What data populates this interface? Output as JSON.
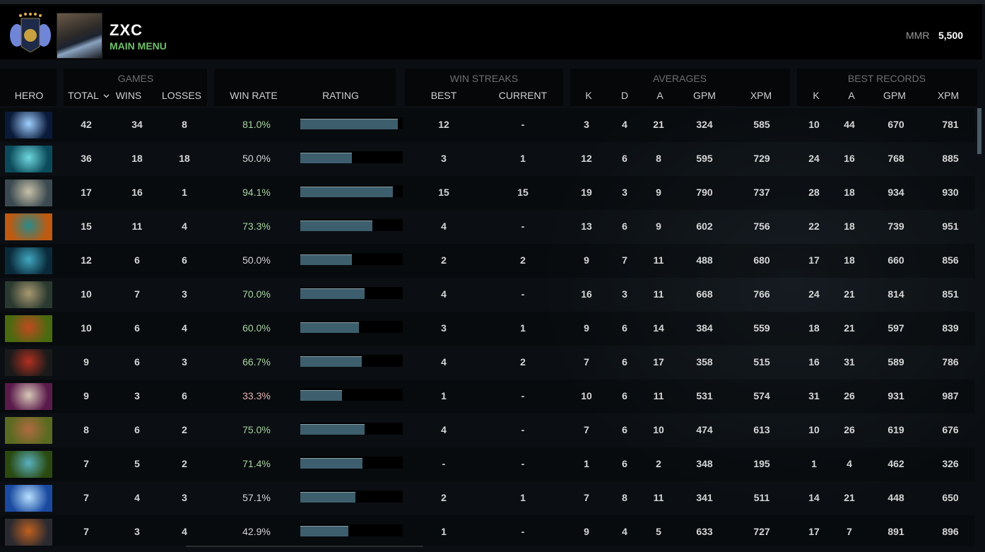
{
  "header": {
    "player_name": "ZXC",
    "status": "MAIN MENU",
    "mmr_label": "MMR",
    "mmr_value": "5,500"
  },
  "groups": {
    "games": "GAMES",
    "win_streaks": "WIN STREAKS",
    "averages": "AVERAGES",
    "best_records": "BEST RECORDS"
  },
  "columns": {
    "hero": "HERO",
    "total": "TOTAL",
    "sort_icon": "chevron-down-icon",
    "wins": "WINS",
    "losses": "LOSSES",
    "win_rate": "WIN RATE",
    "rating": "RATING",
    "best": "BEST",
    "current": "CURRENT",
    "avg_k": "K",
    "avg_d": "D",
    "avg_a": "A",
    "avg_gpm": "GPM",
    "avg_xpm": "XPM",
    "best_k": "K",
    "best_a": "A",
    "best_gpm": "GPM",
    "best_xpm": "XPM"
  },
  "colors": {
    "win_rate_high": "#a8d4a0",
    "win_rate_normal": "#d6d6d6",
    "win_rate_low": "#e2b3b3",
    "rating_fill": "#3d5e6d",
    "status": "#6fbf6a"
  },
  "rows": [
    {
      "hero": "hero-1",
      "c": [
        "#0a1a3a",
        "#9fd0ff"
      ],
      "total": "42",
      "wins": "34",
      "losses": "8",
      "win_rate": "81.0%",
      "rating": 0.95,
      "best": "12",
      "current": "-",
      "k": "3",
      "d": "4",
      "a": "21",
      "gpm": "324",
      "xpm": "585",
      "bk": "10",
      "ba": "44",
      "bgpm": "670",
      "bxpm": "781"
    },
    {
      "hero": "hero-2",
      "c": [
        "#0b4a5a",
        "#6fd8e0"
      ],
      "total": "36",
      "wins": "18",
      "losses": "18",
      "win_rate": "50.0%",
      "rating": 0.5,
      "best": "3",
      "current": "1",
      "k": "12",
      "d": "6",
      "a": "8",
      "gpm": "595",
      "xpm": "729",
      "bk": "24",
      "ba": "16",
      "bgpm": "768",
      "bxpm": "885"
    },
    {
      "hero": "hero-3",
      "c": [
        "#3a4a50",
        "#c8c0a8"
      ],
      "total": "17",
      "wins": "16",
      "losses": "1",
      "win_rate": "94.1%",
      "rating": 0.9,
      "best": "15",
      "current": "15",
      "k": "19",
      "d": "3",
      "a": "9",
      "gpm": "790",
      "xpm": "737",
      "bk": "28",
      "ba": "18",
      "bgpm": "934",
      "bxpm": "930"
    },
    {
      "hero": "hero-4",
      "c": [
        "#c05a10",
        "#2a8a8a"
      ],
      "total": "15",
      "wins": "11",
      "losses": "4",
      "win_rate": "73.3%",
      "rating": 0.7,
      "best": "4",
      "current": "-",
      "k": "13",
      "d": "6",
      "a": "9",
      "gpm": "602",
      "xpm": "756",
      "bk": "22",
      "ba": "18",
      "bgpm": "739",
      "bxpm": "951"
    },
    {
      "hero": "hero-5",
      "c": [
        "#0a2a3a",
        "#40a8c0"
      ],
      "total": "12",
      "wins": "6",
      "losses": "6",
      "win_rate": "50.0%",
      "rating": 0.5,
      "best": "2",
      "current": "2",
      "k": "9",
      "d": "7",
      "a": "11",
      "gpm": "488",
      "xpm": "680",
      "bk": "17",
      "ba": "18",
      "bgpm": "660",
      "bxpm": "856"
    },
    {
      "hero": "hero-6",
      "c": [
        "#2a3a30",
        "#a89870"
      ],
      "total": "10",
      "wins": "7",
      "losses": "3",
      "win_rate": "70.0%",
      "rating": 0.63,
      "best": "4",
      "current": "-",
      "k": "16",
      "d": "3",
      "a": "11",
      "gpm": "668",
      "xpm": "766",
      "bk": "24",
      "ba": "21",
      "bgpm": "814",
      "bxpm": "851"
    },
    {
      "hero": "hero-7",
      "c": [
        "#4a6a10",
        "#c04a20"
      ],
      "total": "10",
      "wins": "6",
      "losses": "4",
      "win_rate": "60.0%",
      "rating": 0.57,
      "best": "3",
      "current": "1",
      "k": "9",
      "d": "6",
      "a": "14",
      "gpm": "384",
      "xpm": "559",
      "bk": "18",
      "ba": "21",
      "bgpm": "597",
      "bxpm": "839"
    },
    {
      "hero": "hero-8",
      "c": [
        "#1a1a1a",
        "#b03020"
      ],
      "total": "9",
      "wins": "6",
      "losses": "3",
      "win_rate": "66.7%",
      "rating": 0.6,
      "best": "4",
      "current": "2",
      "k": "7",
      "d": "6",
      "a": "17",
      "gpm": "358",
      "xpm": "515",
      "bk": "16",
      "ba": "31",
      "bgpm": "589",
      "bxpm": "786"
    },
    {
      "hero": "hero-9",
      "c": [
        "#5a1a4a",
        "#d8c8b8"
      ],
      "total": "9",
      "wins": "3",
      "losses": "6",
      "win_rate": "33.3%",
      "rating": 0.41,
      "best": "1",
      "current": "-",
      "k": "10",
      "d": "6",
      "a": "11",
      "gpm": "531",
      "xpm": "574",
      "bk": "31",
      "ba": "26",
      "bgpm": "931",
      "bxpm": "987"
    },
    {
      "hero": "hero-10",
      "c": [
        "#5a6a20",
        "#b06a40"
      ],
      "total": "8",
      "wins": "6",
      "losses": "2",
      "win_rate": "75.0%",
      "rating": 0.63,
      "best": "4",
      "current": "-",
      "k": "7",
      "d": "6",
      "a": "10",
      "gpm": "474",
      "xpm": "613",
      "bk": "10",
      "ba": "26",
      "bgpm": "619",
      "bxpm": "676"
    },
    {
      "hero": "hero-11",
      "c": [
        "#2a4a10",
        "#5ab0c0"
      ],
      "total": "7",
      "wins": "5",
      "losses": "2",
      "win_rate": "71.4%",
      "rating": 0.61,
      "best": "-",
      "current": "-",
      "k": "1",
      "d": "6",
      "a": "2",
      "gpm": "348",
      "xpm": "195",
      "bk": "1",
      "ba": "4",
      "bgpm": "462",
      "bxpm": "326"
    },
    {
      "hero": "hero-12",
      "c": [
        "#1a4aa0",
        "#b8e0ff"
      ],
      "total": "7",
      "wins": "4",
      "losses": "3",
      "win_rate": "57.1%",
      "rating": 0.54,
      "best": "2",
      "current": "1",
      "k": "7",
      "d": "8",
      "a": "11",
      "gpm": "341",
      "xpm": "511",
      "bk": "14",
      "ba": "21",
      "bgpm": "448",
      "bxpm": "650"
    },
    {
      "hero": "hero-13",
      "c": [
        "#2a2a30",
        "#c06020"
      ],
      "total": "7",
      "wins": "3",
      "losses": "4",
      "win_rate": "42.9%",
      "rating": 0.47,
      "best": "1",
      "current": "-",
      "k": "9",
      "d": "4",
      "a": "5",
      "gpm": "633",
      "xpm": "727",
      "bk": "17",
      "ba": "7",
      "bgpm": "891",
      "bxpm": "896"
    }
  ]
}
